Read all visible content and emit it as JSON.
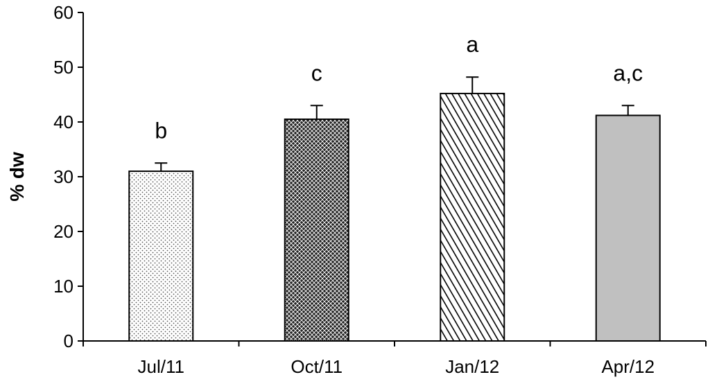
{
  "chart_data": {
    "type": "bar",
    "title": "",
    "xlabel": "",
    "ylabel": "% dw",
    "ylim": [
      0,
      60
    ],
    "yticks": [
      0,
      10,
      20,
      30,
      40,
      50,
      60
    ],
    "categories": [
      "Jul/11",
      "Oct/11",
      "Jan/12",
      "Apr/12"
    ],
    "values": [
      31,
      40.5,
      45.2,
      41.2
    ],
    "errors": [
      1.5,
      2.5,
      3.0,
      1.8
    ],
    "significance_labels": [
      "b",
      "c",
      "a",
      "a,c"
    ],
    "fills": [
      "fine-dots",
      "crosshatch",
      "diagonal-lines",
      "solid-gray"
    ],
    "colors": {
      "bar_outline": "#000000",
      "solid_fill": "#c0c0c0"
    },
    "grid": false,
    "legend": "none"
  }
}
